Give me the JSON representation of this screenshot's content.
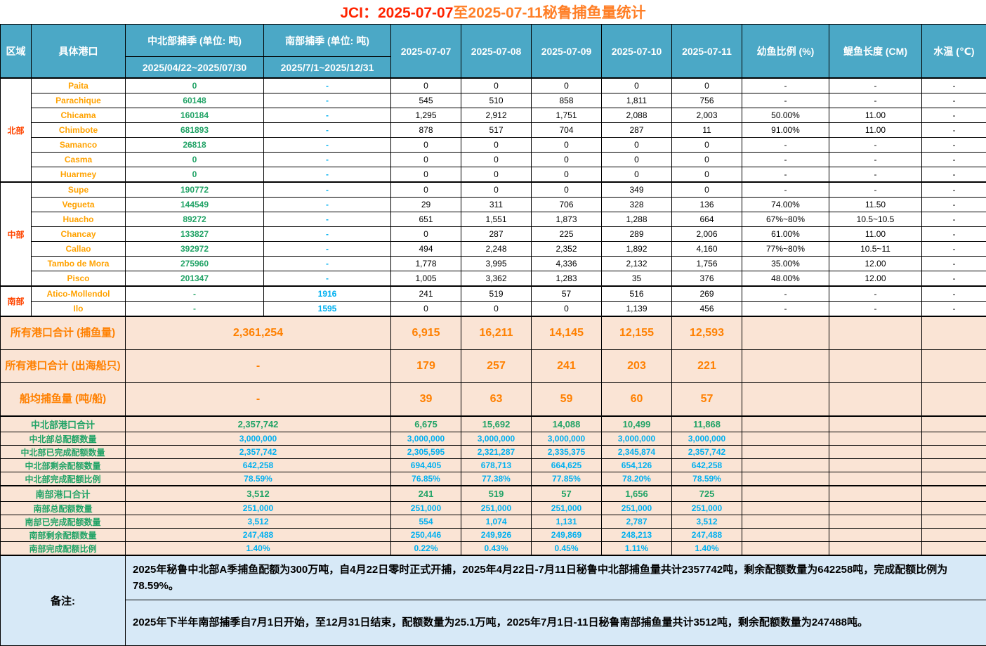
{
  "title": {
    "part1": "JCI：2025-07-07",
    "part2": "至2025-07-11秘鲁捕鱼量统计"
  },
  "colors": {
    "header_bg": "#4ba8c6",
    "summary_bg": "#fae4d5",
    "notes_bg": "#d7e9f7",
    "port_orange": "#ffa200",
    "region_red_orange": "#ff4500",
    "season_green": "#21a366",
    "quota_blue": "#00b0f0",
    "summary_orange": "#ff8000",
    "title_red": "#ff2400",
    "title_orange": "#ff7f27"
  },
  "header": {
    "region": "区域",
    "port": "具体港口",
    "north_season": "中北部捕季 (单位: 吨)",
    "north_range": "2025/04/22~2025/07/30",
    "south_season": "南部捕季 (单位: 吨)",
    "south_range": "2025/7/1~2025/12/31",
    "dates": [
      "2025-07-07",
      "2025-07-08",
      "2025-07-09",
      "2025-07-10",
      "2025-07-11"
    ],
    "juvenile": "幼鱼比例 (%)",
    "length": "鳀鱼长度 (CM)",
    "temp": "水温 (℃)"
  },
  "regions": [
    {
      "name": "北部",
      "ports": [
        {
          "name": "Paita",
          "north": "0",
          "south": "-",
          "daily": [
            "0",
            "0",
            "0",
            "0",
            "0"
          ],
          "juvenile": "-",
          "length": "-",
          "temp": "-"
        },
        {
          "name": "Parachique",
          "north": "60148",
          "south": "-",
          "daily": [
            "545",
            "510",
            "858",
            "1,811",
            "756"
          ],
          "juvenile": "-",
          "length": "-",
          "temp": "-"
        },
        {
          "name": "Chicama",
          "north": "160184",
          "south": "-",
          "daily": [
            "1,295",
            "2,912",
            "1,751",
            "2,088",
            "2,003"
          ],
          "juvenile": "50.00%",
          "length": "11.00",
          "temp": "-"
        },
        {
          "name": "Chimbote",
          "north": "681893",
          "south": "-",
          "daily": [
            "878",
            "517",
            "704",
            "287",
            "11"
          ],
          "juvenile": "91.00%",
          "length": "11.00",
          "temp": "-"
        },
        {
          "name": "Samanco",
          "north": "26818",
          "south": "-",
          "daily": [
            "0",
            "0",
            "0",
            "0",
            "0"
          ],
          "juvenile": "-",
          "length": "-",
          "temp": "-"
        },
        {
          "name": "Casma",
          "north": "0",
          "south": "-",
          "daily": [
            "0",
            "0",
            "0",
            "0",
            "0"
          ],
          "juvenile": "-",
          "length": "-",
          "temp": "-"
        },
        {
          "name": "Huarmey",
          "north": "0",
          "south": "-",
          "daily": [
            "0",
            "0",
            "0",
            "0",
            "0"
          ],
          "juvenile": "-",
          "length": "-",
          "temp": "-"
        }
      ]
    },
    {
      "name": "中部",
      "ports": [
        {
          "name": "Supe",
          "north": "190772",
          "south": "-",
          "daily": [
            "0",
            "0",
            "0",
            "349",
            "0"
          ],
          "juvenile": "-",
          "length": "-",
          "temp": "-"
        },
        {
          "name": "Vegueta",
          "north": "144549",
          "south": "-",
          "daily": [
            "29",
            "311",
            "706",
            "328",
            "136"
          ],
          "juvenile": "74.00%",
          "length": "11.50",
          "temp": "-"
        },
        {
          "name": "Huacho",
          "north": "89272",
          "south": "-",
          "daily": [
            "651",
            "1,551",
            "1,873",
            "1,288",
            "664"
          ],
          "juvenile": "67%~80%",
          "length": "10.5~10.5",
          "temp": "-"
        },
        {
          "name": "Chancay",
          "north": "133827",
          "south": "-",
          "daily": [
            "0",
            "287",
            "225",
            "289",
            "2,006"
          ],
          "juvenile": "61.00%",
          "length": "11.00",
          "temp": "-"
        },
        {
          "name": "Callao",
          "north": "392972",
          "south": "-",
          "daily": [
            "494",
            "2,248",
            "2,352",
            "1,892",
            "4,160"
          ],
          "juvenile": "77%~80%",
          "length": "10.5~11",
          "temp": "-"
        },
        {
          "name": "Tambo de Mora",
          "north": "275960",
          "south": "-",
          "daily": [
            "1,778",
            "3,995",
            "4,336",
            "2,132",
            "1,756"
          ],
          "juvenile": "35.00%",
          "length": "12.00",
          "temp": "-"
        },
        {
          "name": "Pisco",
          "north": "201347",
          "south": "-",
          "daily": [
            "1,005",
            "3,362",
            "1,283",
            "35",
            "376"
          ],
          "juvenile": "48.00%",
          "length": "12.00",
          "temp": "-"
        }
      ]
    },
    {
      "name": "南部",
      "ports": [
        {
          "name": "Atico-Mollendol",
          "north": "-",
          "south": "1916",
          "daily": [
            "241",
            "519",
            "57",
            "516",
            "269"
          ],
          "juvenile": "-",
          "length": "-",
          "temp": "-"
        },
        {
          "name": "Ilo",
          "north": "-",
          "south": "1595",
          "daily": [
            "0",
            "0",
            "0",
            "1,139",
            "456"
          ],
          "juvenile": "-",
          "length": "-",
          "temp": "-"
        }
      ]
    }
  ],
  "summary_rows": [
    {
      "label": "所有港口合计 (捕鱼量)",
      "total": "2,361,254",
      "daily": [
        "6,915",
        "16,211",
        "14,145",
        "12,155",
        "12,593"
      ]
    },
    {
      "label": "所有港口合计 (出海船只)",
      "total": "-",
      "daily": [
        "179",
        "257",
        "241",
        "203",
        "221"
      ]
    },
    {
      "label": "船均捕鱼量 (吨/船)",
      "total": "-",
      "daily": [
        "39",
        "63",
        "59",
        "60",
        "57"
      ]
    }
  ],
  "north_quota": {
    "rows": [
      {
        "label": "中北部港口合计",
        "total": "2,357,742",
        "daily": [
          "6,675",
          "15,692",
          "14,088",
          "10,499",
          "11,868"
        ]
      },
      {
        "label": "中北部总配额数量",
        "total": "3,000,000",
        "daily": [
          "3,000,000",
          "3,000,000",
          "3,000,000",
          "3,000,000",
          "3,000,000"
        ]
      },
      {
        "label": "中北部已完成配额数量",
        "total": "2,357,742",
        "daily": [
          "2,305,595",
          "2,321,287",
          "2,335,375",
          "2,345,874",
          "2,357,742"
        ]
      },
      {
        "label": "中北部剩余配额数量",
        "total": "642,258",
        "daily": [
          "694,405",
          "678,713",
          "664,625",
          "654,126",
          "642,258"
        ]
      },
      {
        "label": "中北部完成配额比例",
        "total": "78.59%",
        "daily": [
          "76.85%",
          "77.38%",
          "77.85%",
          "78.20%",
          "78.59%"
        ]
      }
    ]
  },
  "south_quota": {
    "rows": [
      {
        "label": "南部港口合计",
        "total": "3,512",
        "daily": [
          "241",
          "519",
          "57",
          "1,656",
          "725"
        ]
      },
      {
        "label": "南部总配额数量",
        "total": "251,000",
        "daily": [
          "251,000",
          "251,000",
          "251,000",
          "251,000",
          "251,000"
        ]
      },
      {
        "label": "南部已完成配额数量",
        "total": "3,512",
        "daily": [
          "554",
          "1,074",
          "1,131",
          "2,787",
          "3,512"
        ]
      },
      {
        "label": "南部剩余配额数量",
        "total": "247,488",
        "daily": [
          "250,446",
          "249,926",
          "249,869",
          "248,213",
          "247,488"
        ]
      },
      {
        "label": "南部完成配额比例",
        "total": "1.40%",
        "daily": [
          "0.22%",
          "0.43%",
          "0.45%",
          "1.11%",
          "1.40%"
        ]
      }
    ]
  },
  "notes": {
    "label": "备注:",
    "items": [
      "2025年秘鲁中北部A季捕鱼配额为300万吨，自4月22日零时正式开捕，2025年4月22日-7月11日秘鲁中北部捕鱼量共计2357742吨，剩余配额数量为642258吨，完成配额比例为78.59%。",
      "2025年下半年南部捕季自7月1日开始，至12月31日结束，配额数量为25.1万吨，2025年7月1日-11日秘鲁南部捕鱼量共计3512吨，剩余配额数量为247488吨。"
    ]
  }
}
